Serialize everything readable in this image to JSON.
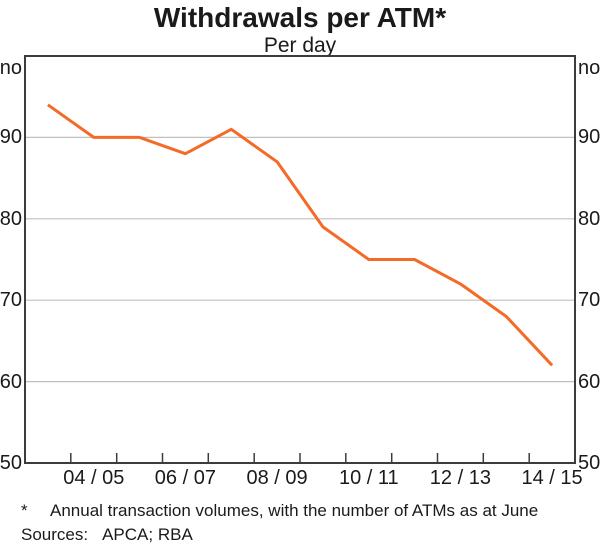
{
  "chart_data": {
    "type": "line",
    "title": "Withdrawals per ATM*",
    "subtitle": "Per day",
    "unit_label": "no",
    "unit_label_sides": [
      "left",
      "right"
    ],
    "x": [
      "03/04",
      "04/05",
      "05/06",
      "06/07",
      "07/08",
      "08/09",
      "09/10",
      "10/11",
      "11/12",
      "12/13",
      "13/14",
      "14/15"
    ],
    "series": [
      {
        "name": "Withdrawals per ATM",
        "values": [
          94,
          90,
          90,
          88,
          91,
          87,
          79,
          75,
          75,
          72,
          68,
          62
        ],
        "color": "#f36b26"
      }
    ],
    "x_tick_labels_shown": [
      {
        "category": "04/05",
        "label": "04 / 05"
      },
      {
        "category": "06/07",
        "label": "06 / 07"
      },
      {
        "category": "08/09",
        "label": "08 / 09"
      },
      {
        "category": "10/11",
        "label": "10 / 11"
      },
      {
        "category": "12/13",
        "label": "12 / 13"
      },
      {
        "category": "14/15",
        "label": "14 / 15"
      }
    ],
    "yticks": [
      50,
      60,
      70,
      80,
      90
    ],
    "ylim": [
      50,
      100
    ],
    "grid": "horizontal-at-yticks-above-min",
    "legend": "none",
    "tick_labels_both_sides": true
  },
  "footnote": {
    "marker": "*",
    "text": "Annual transaction volumes, with the number of ATMs as at June"
  },
  "sources": {
    "label": "Sources:",
    "value": "APCA; RBA"
  },
  "colors": {
    "line": "#f36b26",
    "grid": "#bfbfbf",
    "frame": "#3c3c3c",
    "text": "#1a1a1a",
    "background": "#ffffff"
  }
}
